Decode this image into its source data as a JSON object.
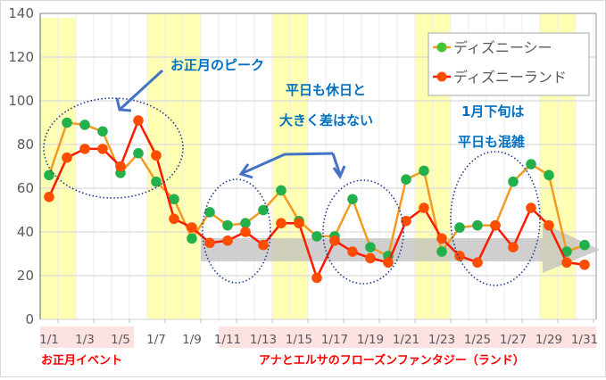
{
  "chart_data": {
    "type": "line",
    "title": "",
    "xlabel": "",
    "ylabel": "",
    "ylim": [
      0,
      140
    ],
    "yticks": [
      0,
      20,
      40,
      60,
      80,
      100,
      120,
      140
    ],
    "grid": true,
    "legend_position": "upper-right",
    "x": [
      "1/1",
      "1/2",
      "1/3",
      "1/4",
      "1/5",
      "1/6",
      "1/7",
      "1/8",
      "1/9",
      "1/10",
      "1/11",
      "1/12",
      "1/13",
      "1/14",
      "1/15",
      "1/16",
      "1/17",
      "1/18",
      "1/19",
      "1/20",
      "1/21",
      "1/22",
      "1/23",
      "1/24",
      "1/25",
      "1/26",
      "1/27",
      "1/28",
      "1/29",
      "1/30",
      "1/31"
    ],
    "xtick_labels": [
      "1/1",
      "1/3",
      "1/5",
      "1/7",
      "1/9",
      "1/11",
      "1/13",
      "1/15",
      "1/17",
      "1/19",
      "1/21",
      "1/23",
      "1/25",
      "1/27",
      "1/29",
      "1/31"
    ],
    "series": [
      {
        "name": "ディズニーシー",
        "line_color": "#f39a21",
        "marker_color": "#22b04a",
        "values": [
          66,
          90,
          89,
          86,
          67,
          76,
          63,
          55,
          37,
          49,
          43,
          44,
          50,
          59,
          45,
          38,
          38,
          55,
          33,
          29,
          64,
          68,
          31,
          42,
          43,
          43,
          63,
          71,
          66,
          31,
          34
        ]
      },
      {
        "name": "ディズニーランド",
        "line_color": "#ff1a00",
        "marker_color": "#ff4d00",
        "values": [
          56,
          74,
          78,
          78,
          70,
          91,
          75,
          46,
          42,
          35,
          36,
          40,
          34,
          44,
          44,
          19,
          36,
          31,
          28,
          26,
          45,
          51,
          37,
          29,
          26,
          43,
          33,
          51,
          43,
          26,
          25
        ]
      }
    ],
    "highlight_days_yellow": [
      [
        1,
        2
      ],
      [
        7,
        9
      ],
      [
        14,
        15
      ],
      [
        22,
        23
      ],
      [
        29,
        30
      ]
    ],
    "annotations": [
      {
        "text": "お正月のピーク"
      },
      {
        "text": "平日も休日と"
      },
      {
        "text": "大きく差はない"
      },
      {
        "text": "1月下旬は"
      },
      {
        "text": "平日も混雑"
      }
    ],
    "event_labels": [
      {
        "text": "お正月イベント",
        "range": [
          "1/1",
          "1/6"
        ]
      },
      {
        "text": "アナとエルサのフローズンファンタジー（ランド）",
        "range": [
          "1/11",
          "1/31"
        ]
      }
    ]
  },
  "legend": {
    "sea": "ディズニーシー",
    "land": "ディズニーランド"
  },
  "annotations": {
    "peak": "お正月のピーク",
    "no_diff_1": "平日も休日と",
    "no_diff_2": "大きく差はない",
    "late_1": "1月下旬は",
    "late_2": "平日も混雑"
  },
  "events": {
    "new_year": "お正月イベント",
    "frozen": "アナとエルサのフローズンファンタジー（ランド）"
  },
  "colors": {
    "sea_line": "#f39a21",
    "sea_marker": "#22b04a",
    "land_line": "#ff1a00",
    "land_marker": "#ff4d00",
    "weekend_band": "#ffffb3",
    "event_band": "#fde2e2",
    "annotation": "#0070c0",
    "event_text": "#ff0000"
  }
}
